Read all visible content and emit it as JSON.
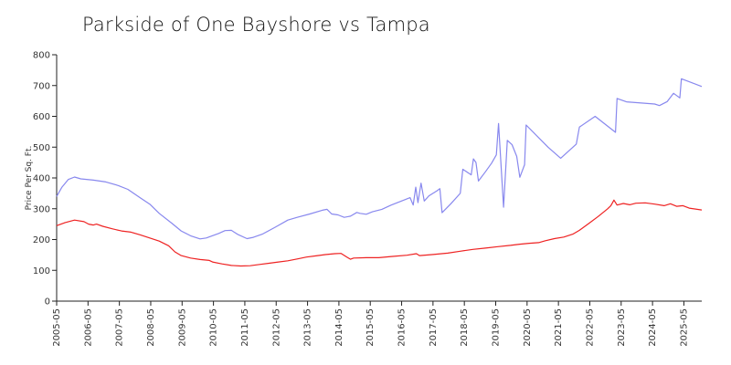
{
  "chart_data": {
    "type": "line",
    "title": "Parkside of One Bayshore vs Tampa",
    "xlabel": "",
    "ylabel": "Price Per Sq. Ft.",
    "ylim": [
      0,
      800
    ],
    "yticks": [
      0,
      100,
      200,
      300,
      400,
      500,
      600,
      700,
      800
    ],
    "xlim": [
      2005.33,
      2025.9
    ],
    "xticks": [
      {
        "label": "2005-05",
        "value": 2005.33
      },
      {
        "label": "2006-05",
        "value": 2006.33
      },
      {
        "label": "2007-05",
        "value": 2007.33
      },
      {
        "label": "2008-05",
        "value": 2008.33
      },
      {
        "label": "2009-05",
        "value": 2009.33
      },
      {
        "label": "2010-05",
        "value": 2010.33
      },
      {
        "label": "2011-05",
        "value": 2011.33
      },
      {
        "label": "2012-05",
        "value": 2012.33
      },
      {
        "label": "2013-05",
        "value": 2013.33
      },
      {
        "label": "2014-05",
        "value": 2014.33
      },
      {
        "label": "2015-05",
        "value": 2015.33
      },
      {
        "label": "2016-05",
        "value": 2016.33
      },
      {
        "label": "2017-05",
        "value": 2017.33
      },
      {
        "label": "2018-05",
        "value": 2018.33
      },
      {
        "label": "2019-05",
        "value": 2019.33
      },
      {
        "label": "2020-05",
        "value": 2020.33
      },
      {
        "label": "2021-05",
        "value": 2021.33
      },
      {
        "label": "2022-05",
        "value": 2022.33
      },
      {
        "label": "2023-05",
        "value": 2023.33
      },
      {
        "label": "2024-05",
        "value": 2024.33
      },
      {
        "label": "2025-05",
        "value": 2025.33
      }
    ],
    "series": [
      {
        "name": "Parkside of One Bayshore",
        "color": "#8888ee",
        "points": [
          [
            2005.33,
            340
          ],
          [
            2005.5,
            370
          ],
          [
            2005.7,
            395
          ],
          [
            2005.9,
            403
          ],
          [
            2006.1,
            397
          ],
          [
            2006.5,
            393
          ],
          [
            2006.9,
            387
          ],
          [
            2007.3,
            375
          ],
          [
            2007.6,
            363
          ],
          [
            2008.0,
            335
          ],
          [
            2008.3,
            315
          ],
          [
            2008.6,
            285
          ],
          [
            2009.0,
            253
          ],
          [
            2009.3,
            228
          ],
          [
            2009.6,
            212
          ],
          [
            2009.9,
            202
          ],
          [
            2010.1,
            205
          ],
          [
            2010.5,
            220
          ],
          [
            2010.7,
            229
          ],
          [
            2010.9,
            230
          ],
          [
            2011.1,
            217
          ],
          [
            2011.4,
            203
          ],
          [
            2011.6,
            207
          ],
          [
            2011.9,
            218
          ],
          [
            2012.3,
            240
          ],
          [
            2012.7,
            263
          ],
          [
            2013.0,
            272
          ],
          [
            2013.4,
            283
          ],
          [
            2013.8,
            295
          ],
          [
            2013.95,
            298
          ],
          [
            2014.1,
            283
          ],
          [
            2014.3,
            280
          ],
          [
            2014.5,
            272
          ],
          [
            2014.7,
            276
          ],
          [
            2014.9,
            288
          ],
          [
            2015.0,
            285
          ],
          [
            2015.2,
            282
          ],
          [
            2015.4,
            290
          ],
          [
            2015.7,
            298
          ],
          [
            2016.0,
            312
          ],
          [
            2016.4,
            328
          ],
          [
            2016.6,
            336
          ],
          [
            2016.7,
            312
          ],
          [
            2016.78,
            370
          ],
          [
            2016.85,
            320
          ],
          [
            2016.95,
            383
          ],
          [
            2017.05,
            325
          ],
          [
            2017.2,
            342
          ],
          [
            2017.45,
            358
          ],
          [
            2017.55,
            365
          ],
          [
            2017.62,
            287
          ],
          [
            2017.9,
            316
          ],
          [
            2018.2,
            350
          ],
          [
            2018.28,
            428
          ],
          [
            2018.55,
            410
          ],
          [
            2018.62,
            462
          ],
          [
            2018.7,
            450
          ],
          [
            2018.78,
            390
          ],
          [
            2019.0,
            420
          ],
          [
            2019.2,
            448
          ],
          [
            2019.35,
            475
          ],
          [
            2019.42,
            577
          ],
          [
            2019.58,
            305
          ],
          [
            2019.7,
            522
          ],
          [
            2019.85,
            508
          ],
          [
            2020.0,
            470
          ],
          [
            2020.1,
            402
          ],
          [
            2020.25,
            443
          ],
          [
            2020.3,
            572
          ],
          [
            2021.0,
            500
          ],
          [
            2021.4,
            464
          ],
          [
            2021.9,
            510
          ],
          [
            2022.0,
            565
          ],
          [
            2022.5,
            600
          ],
          [
            2023.0,
            560
          ],
          [
            2023.15,
            548
          ],
          [
            2023.2,
            658
          ],
          [
            2023.5,
            647
          ],
          [
            2024.4,
            640
          ],
          [
            2024.55,
            635
          ],
          [
            2024.8,
            648
          ],
          [
            2025.0,
            675
          ],
          [
            2025.2,
            660
          ],
          [
            2025.25,
            722
          ],
          [
            2025.9,
            697
          ]
        ]
      },
      {
        "name": "Tampa",
        "color": "#ee2222",
        "points": [
          [
            2005.33,
            245
          ],
          [
            2005.6,
            255
          ],
          [
            2005.9,
            263
          ],
          [
            2006.2,
            258
          ],
          [
            2006.35,
            250
          ],
          [
            2006.5,
            247
          ],
          [
            2006.6,
            250
          ],
          [
            2006.8,
            243
          ],
          [
            2007.1,
            235
          ],
          [
            2007.4,
            228
          ],
          [
            2007.7,
            224
          ],
          [
            2008.0,
            215
          ],
          [
            2008.3,
            205
          ],
          [
            2008.6,
            195
          ],
          [
            2008.9,
            180
          ],
          [
            2009.1,
            160
          ],
          [
            2009.3,
            148
          ],
          [
            2009.6,
            140
          ],
          [
            2009.9,
            135
          ],
          [
            2010.2,
            132
          ],
          [
            2010.3,
            127
          ],
          [
            2010.6,
            121
          ],
          [
            2010.9,
            116
          ],
          [
            2011.2,
            114
          ],
          [
            2011.5,
            115
          ],
          [
            2011.8,
            119
          ],
          [
            2012.1,
            123
          ],
          [
            2012.4,
            127
          ],
          [
            2012.7,
            131
          ],
          [
            2013.0,
            137
          ],
          [
            2013.3,
            143
          ],
          [
            2013.6,
            147
          ],
          [
            2013.9,
            151
          ],
          [
            2014.2,
            154
          ],
          [
            2014.4,
            155
          ],
          [
            2014.6,
            142
          ],
          [
            2014.7,
            136
          ],
          [
            2014.8,
            140
          ],
          [
            2015.2,
            141
          ],
          [
            2015.6,
            141
          ],
          [
            2016.0,
            145
          ],
          [
            2016.5,
            149
          ],
          [
            2016.8,
            154
          ],
          [
            2016.9,
            148
          ],
          [
            2017.3,
            151
          ],
          [
            2017.8,
            156
          ],
          [
            2018.2,
            162
          ],
          [
            2018.6,
            168
          ],
          [
            2019.0,
            172
          ],
          [
            2019.4,
            177
          ],
          [
            2019.8,
            181
          ],
          [
            2020.1,
            185
          ],
          [
            2020.4,
            188
          ],
          [
            2020.7,
            190
          ],
          [
            2020.9,
            196
          ],
          [
            2021.2,
            203
          ],
          [
            2021.5,
            208
          ],
          [
            2021.8,
            218
          ],
          [
            2022.0,
            230
          ],
          [
            2022.3,
            252
          ],
          [
            2022.6,
            275
          ],
          [
            2022.9,
            300
          ],
          [
            2023.0,
            310
          ],
          [
            2023.1,
            328
          ],
          [
            2023.2,
            312
          ],
          [
            2023.4,
            317
          ],
          [
            2023.6,
            313
          ],
          [
            2023.8,
            318
          ],
          [
            2024.1,
            319
          ],
          [
            2024.4,
            315
          ],
          [
            2024.7,
            310
          ],
          [
            2024.9,
            316
          ],
          [
            2025.1,
            308
          ],
          [
            2025.3,
            310
          ],
          [
            2025.5,
            302
          ],
          [
            2025.9,
            296
          ]
        ]
      }
    ]
  }
}
